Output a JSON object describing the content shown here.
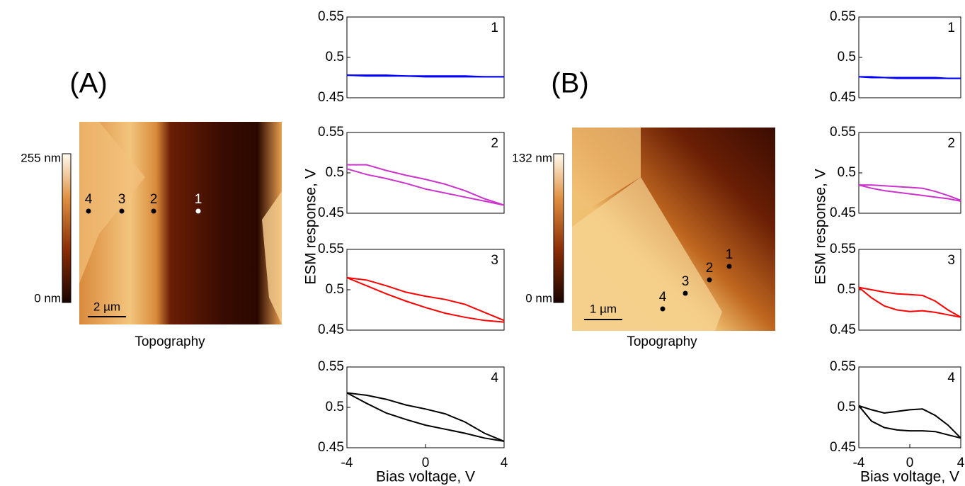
{
  "panels": [
    {
      "label": "(A)",
      "caption": "Topography",
      "colorbar_max": "255 nm",
      "colorbar_min": "0 nm",
      "scale_bar": "2 µm",
      "points": [
        "1",
        "2",
        "3",
        "4"
      ],
      "ylabel": "ESM response, V",
      "xlabel": "Bias voltage, V"
    },
    {
      "label": "(B)",
      "caption": "Topography",
      "colorbar_max": "132 nm",
      "colorbar_min": "0 nm",
      "scale_bar": "1 µm",
      "points": [
        "1",
        "2",
        "3",
        "4"
      ],
      "ylabel": "ESM response, V",
      "xlabel": "Bias voltage, V"
    }
  ],
  "chart_data": [
    {
      "type": "line",
      "annotation": "1",
      "x": [
        -4,
        -3,
        -2,
        -1,
        0,
        1,
        2,
        3,
        4
      ],
      "xlim": [
        -4,
        4
      ],
      "ylim": [
        0.45,
        0.55
      ],
      "yticks": [
        0.45,
        0.5,
        0.55
      ],
      "series": [
        {
          "color": "#0000ff",
          "values": [
            0.478,
            0.478,
            0.478,
            0.477,
            0.477,
            0.477,
            0.477,
            0.476,
            0.476
          ]
        },
        {
          "color": "#0000ff",
          "values": [
            0.478,
            0.477,
            0.477,
            0.477,
            0.476,
            0.476,
            0.476,
            0.476,
            0.476
          ]
        }
      ]
    },
    {
      "type": "line",
      "annotation": "2",
      "x": [
        -4,
        -3,
        -2,
        -1,
        0,
        1,
        2,
        3,
        4
      ],
      "xlim": [
        -4,
        4
      ],
      "ylim": [
        0.45,
        0.55
      ],
      "yticks": [
        0.45,
        0.5,
        0.55
      ],
      "series": [
        {
          "color": "#cc33cc",
          "values": [
            0.51,
            0.51,
            0.503,
            0.497,
            0.492,
            0.486,
            0.478,
            0.468,
            0.46
          ]
        },
        {
          "color": "#cc33cc",
          "values": [
            0.505,
            0.498,
            0.493,
            0.487,
            0.48,
            0.475,
            0.47,
            0.465,
            0.46
          ]
        }
      ]
    },
    {
      "type": "line",
      "annotation": "3",
      "x": [
        -4,
        -3,
        -2,
        -1,
        0,
        1,
        2,
        3,
        4
      ],
      "xlim": [
        -4,
        4
      ],
      "ylim": [
        0.45,
        0.55
      ],
      "yticks": [
        0.45,
        0.5,
        0.55
      ],
      "series": [
        {
          "color": "#ff0000",
          "values": [
            0.515,
            0.512,
            0.505,
            0.497,
            0.492,
            0.488,
            0.482,
            0.472,
            0.462
          ]
        },
        {
          "color": "#ff0000",
          "values": [
            0.515,
            0.505,
            0.495,
            0.486,
            0.478,
            0.471,
            0.466,
            0.462,
            0.46
          ]
        }
      ]
    },
    {
      "type": "line",
      "annotation": "4",
      "x": [
        -4,
        -3,
        -2,
        -1,
        0,
        1,
        2,
        3,
        4
      ],
      "xlim": [
        -4,
        4
      ],
      "ylim": [
        0.45,
        0.55
      ],
      "yticks": [
        0.45,
        0.5,
        0.55
      ],
      "xticks": [
        -4,
        0,
        4
      ],
      "series": [
        {
          "color": "#000000",
          "values": [
            0.518,
            0.515,
            0.51,
            0.503,
            0.498,
            0.492,
            0.482,
            0.468,
            0.458
          ]
        },
        {
          "color": "#000000",
          "values": [
            0.518,
            0.505,
            0.493,
            0.485,
            0.478,
            0.473,
            0.468,
            0.462,
            0.458
          ]
        }
      ]
    },
    {
      "type": "line",
      "annotation": "1",
      "x": [
        -4,
        -3,
        -2,
        -1,
        0,
        1,
        2,
        3,
        4
      ],
      "xlim": [
        -4,
        4
      ],
      "ylim": [
        0.45,
        0.55
      ],
      "yticks": [
        0.45,
        0.5,
        0.55
      ],
      "series": [
        {
          "color": "#0000ff",
          "values": [
            0.476,
            0.476,
            0.475,
            0.475,
            0.475,
            0.475,
            0.475,
            0.474,
            0.474
          ]
        },
        {
          "color": "#0000ff",
          "values": [
            0.476,
            0.475,
            0.475,
            0.474,
            0.474,
            0.474,
            0.474,
            0.474,
            0.474
          ]
        }
      ]
    },
    {
      "type": "line",
      "annotation": "2",
      "x": [
        -4,
        -3,
        -2,
        -1,
        0,
        1,
        2,
        3,
        4
      ],
      "xlim": [
        -4,
        4
      ],
      "ylim": [
        0.45,
        0.55
      ],
      "yticks": [
        0.45,
        0.5,
        0.55
      ],
      "series": [
        {
          "color": "#cc33cc",
          "values": [
            0.485,
            0.485,
            0.484,
            0.483,
            0.482,
            0.481,
            0.477,
            0.472,
            0.466
          ]
        },
        {
          "color": "#cc33cc",
          "values": [
            0.485,
            0.481,
            0.478,
            0.476,
            0.474,
            0.472,
            0.47,
            0.468,
            0.465
          ]
        }
      ]
    },
    {
      "type": "line",
      "annotation": "3",
      "x": [
        -4,
        -3,
        -2,
        -1,
        0,
        1,
        2,
        3,
        4
      ],
      "xlim": [
        -4,
        4
      ],
      "ylim": [
        0.45,
        0.55
      ],
      "yticks": [
        0.45,
        0.5,
        0.55
      ],
      "series": [
        {
          "color": "#ff0000",
          "values": [
            0.503,
            0.5,
            0.497,
            0.495,
            0.494,
            0.493,
            0.486,
            0.475,
            0.466
          ]
        },
        {
          "color": "#ff0000",
          "values": [
            0.503,
            0.49,
            0.48,
            0.475,
            0.473,
            0.474,
            0.472,
            0.469,
            0.466
          ]
        }
      ]
    },
    {
      "type": "line",
      "annotation": "4",
      "x": [
        -4,
        -3,
        -2,
        -1,
        0,
        1,
        2,
        3,
        4
      ],
      "xlim": [
        -4,
        4
      ],
      "ylim": [
        0.45,
        0.55
      ],
      "yticks": [
        0.45,
        0.5,
        0.55
      ],
      "xticks": [
        -4,
        0,
        4
      ],
      "series": [
        {
          "color": "#000000",
          "values": [
            0.502,
            0.497,
            0.493,
            0.495,
            0.497,
            0.498,
            0.49,
            0.478,
            0.462
          ]
        },
        {
          "color": "#000000",
          "values": [
            0.502,
            0.483,
            0.475,
            0.472,
            0.471,
            0.471,
            0.47,
            0.466,
            0.462
          ]
        }
      ]
    }
  ]
}
